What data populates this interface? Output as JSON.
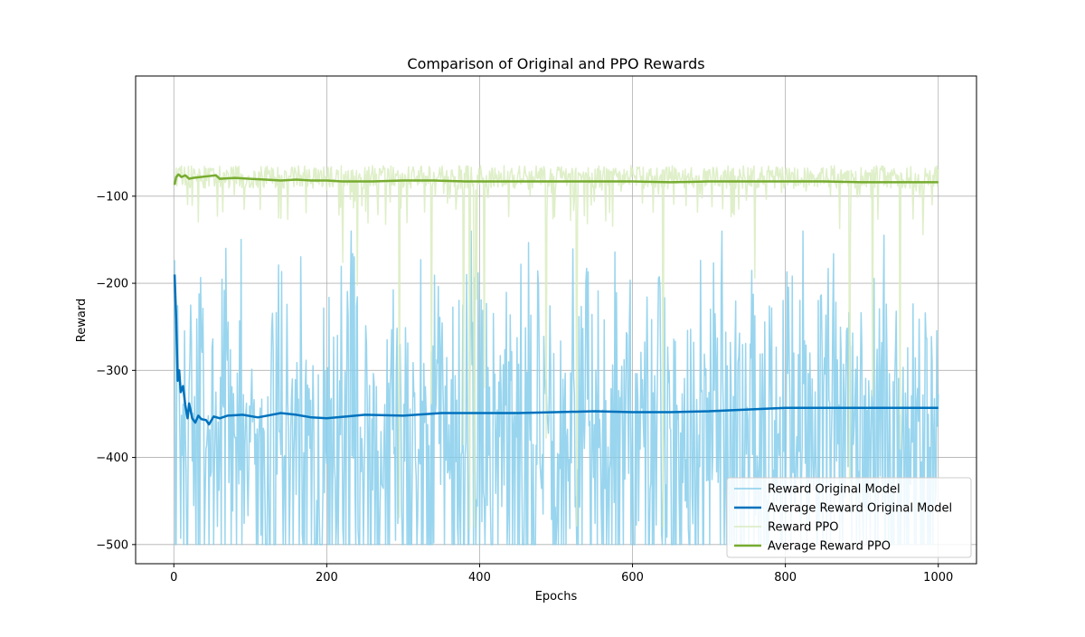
{
  "chart_data": {
    "type": "line",
    "title": "Comparison of Original and PPO Rewards",
    "xlabel": "Epochs",
    "ylabel": "Reward",
    "xlim": [
      -50,
      1050
    ],
    "ylim": [
      -522,
      38
    ],
    "xticks": [
      0,
      200,
      400,
      600,
      800,
      1000
    ],
    "yticks": [
      -500,
      -400,
      -300,
      -200,
      -100
    ],
    "grid": true,
    "legend_position": "bottom-right",
    "series": [
      {
        "name": "Reward Original Model",
        "color": "#87ceeb",
        "style": "noisy",
        "mean": -345,
        "min": -500,
        "max": -140,
        "n_points": 1000
      },
      {
        "name": "Average Reward Original Model",
        "color": "#0072bd",
        "style": "smooth",
        "points": [
          [
            1,
            -190
          ],
          [
            3,
            -240
          ],
          [
            5,
            -312
          ],
          [
            7,
            -300
          ],
          [
            9,
            -325
          ],
          [
            12,
            -318
          ],
          [
            15,
            -340
          ],
          [
            18,
            -355
          ],
          [
            20,
            -338
          ],
          [
            24,
            -355
          ],
          [
            28,
            -360
          ],
          [
            32,
            -352
          ],
          [
            36,
            -356
          ],
          [
            42,
            -357
          ],
          [
            46,
            -362
          ],
          [
            52,
            -353
          ],
          [
            60,
            -355
          ],
          [
            70,
            -352
          ],
          [
            90,
            -351
          ],
          [
            110,
            -354
          ],
          [
            140,
            -349
          ],
          [
            160,
            -351
          ],
          [
            180,
            -354
          ],
          [
            200,
            -355
          ],
          [
            250,
            -351
          ],
          [
            300,
            -352
          ],
          [
            350,
            -349
          ],
          [
            400,
            -349
          ],
          [
            450,
            -349
          ],
          [
            500,
            -348
          ],
          [
            550,
            -347
          ],
          [
            600,
            -348
          ],
          [
            650,
            -348
          ],
          [
            700,
            -347
          ],
          [
            750,
            -345
          ],
          [
            800,
            -343
          ],
          [
            850,
            -343
          ],
          [
            900,
            -343
          ],
          [
            950,
            -343
          ],
          [
            1000,
            -343
          ]
        ]
      },
      {
        "name": "Reward PPO",
        "color": "#d9ecc0",
        "style": "noisy",
        "mean": -78,
        "min": -500,
        "max": -60,
        "n_points": 1000
      },
      {
        "name": "Average Reward PPO",
        "color": "#77ac30",
        "style": "smooth",
        "points": [
          [
            1,
            -87
          ],
          [
            3,
            -78
          ],
          [
            6,
            -75
          ],
          [
            10,
            -78
          ],
          [
            15,
            -76
          ],
          [
            20,
            -80
          ],
          [
            25,
            -79
          ],
          [
            35,
            -78
          ],
          [
            45,
            -77
          ],
          [
            55,
            -76
          ],
          [
            60,
            -80
          ],
          [
            80,
            -79
          ],
          [
            100,
            -80
          ],
          [
            120,
            -81
          ],
          [
            140,
            -82
          ],
          [
            160,
            -81
          ],
          [
            180,
            -82
          ],
          [
            200,
            -82
          ],
          [
            220,
            -83
          ],
          [
            260,
            -83
          ],
          [
            300,
            -82
          ],
          [
            340,
            -82
          ],
          [
            380,
            -83
          ],
          [
            400,
            -83
          ],
          [
            450,
            -83
          ],
          [
            500,
            -83
          ],
          [
            550,
            -83
          ],
          [
            600,
            -83
          ],
          [
            650,
            -84
          ],
          [
            700,
            -83
          ],
          [
            750,
            -83
          ],
          [
            800,
            -83
          ],
          [
            850,
            -83
          ],
          [
            900,
            -84
          ],
          [
            950,
            -84
          ],
          [
            1000,
            -84
          ]
        ]
      }
    ]
  }
}
